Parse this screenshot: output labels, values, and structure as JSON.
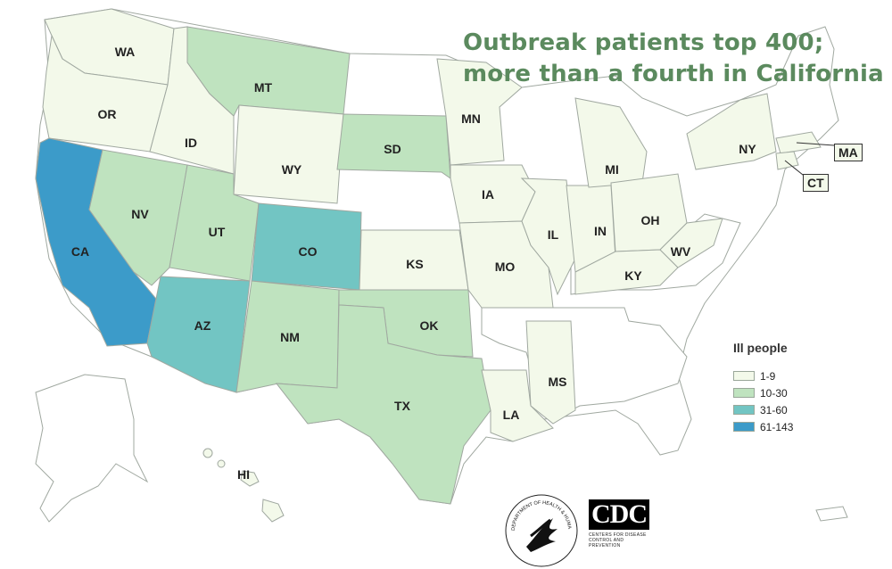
{
  "title_lines": [
    "Outbreak patients top 400;",
    "more than a fourth in California"
  ],
  "colors": {
    "title": "#5b8a5e",
    "none": "#ffffff",
    "bin_1_9": "#f3f9ea",
    "bin_10_30": "#bfe3bf",
    "bin_31_60": "#72c5c3",
    "bin_61_143": "#3c9bc9",
    "border": "#a0a8a0"
  },
  "legend": {
    "title": "Ill people",
    "items": [
      {
        "label": "1-9",
        "color": "#f3f9ea"
      },
      {
        "label": "10-30",
        "color": "#bfe3bf"
      },
      {
        "label": "31-60",
        "color": "#72c5c3"
      },
      {
        "label": "61-143",
        "color": "#3c9bc9"
      }
    ]
  },
  "states": [
    {
      "abbr": "WA",
      "bin": "1-9"
    },
    {
      "abbr": "OR",
      "bin": "1-9"
    },
    {
      "abbr": "CA",
      "bin": "61-143"
    },
    {
      "abbr": "ID",
      "bin": "1-9"
    },
    {
      "abbr": "NV",
      "bin": "10-30"
    },
    {
      "abbr": "MT",
      "bin": "10-30"
    },
    {
      "abbr": "WY",
      "bin": "1-9"
    },
    {
      "abbr": "UT",
      "bin": "10-30"
    },
    {
      "abbr": "CO",
      "bin": "31-60"
    },
    {
      "abbr": "AZ",
      "bin": "31-60"
    },
    {
      "abbr": "NM",
      "bin": "10-30"
    },
    {
      "abbr": "SD",
      "bin": "10-30"
    },
    {
      "abbr": "KS",
      "bin": "1-9"
    },
    {
      "abbr": "OK",
      "bin": "10-30"
    },
    {
      "abbr": "TX",
      "bin": "10-30"
    },
    {
      "abbr": "MN",
      "bin": "1-9"
    },
    {
      "abbr": "IA",
      "bin": "1-9"
    },
    {
      "abbr": "MO",
      "bin": "1-9"
    },
    {
      "abbr": "LA",
      "bin": "1-9"
    },
    {
      "abbr": "MS",
      "bin": "1-9"
    },
    {
      "abbr": "IL",
      "bin": "1-9"
    },
    {
      "abbr": "IN",
      "bin": "1-9"
    },
    {
      "abbr": "MI",
      "bin": "1-9"
    },
    {
      "abbr": "OH",
      "bin": "1-9"
    },
    {
      "abbr": "KY",
      "bin": "1-9"
    },
    {
      "abbr": "WV",
      "bin": "1-9"
    },
    {
      "abbr": "NY",
      "bin": "1-9"
    },
    {
      "abbr": "MA",
      "bin": "1-9"
    },
    {
      "abbr": "CT",
      "bin": "1-9"
    },
    {
      "abbr": "HI",
      "bin": "none"
    }
  ],
  "logos": {
    "cdc_text": "CDC",
    "cdc_subtext": "CENTERS FOR DISEASE CONTROL AND PREVENTION",
    "hhs_ring_text": "DEPARTMENT OF HEALTH & HUMAN SERVICES USA"
  }
}
